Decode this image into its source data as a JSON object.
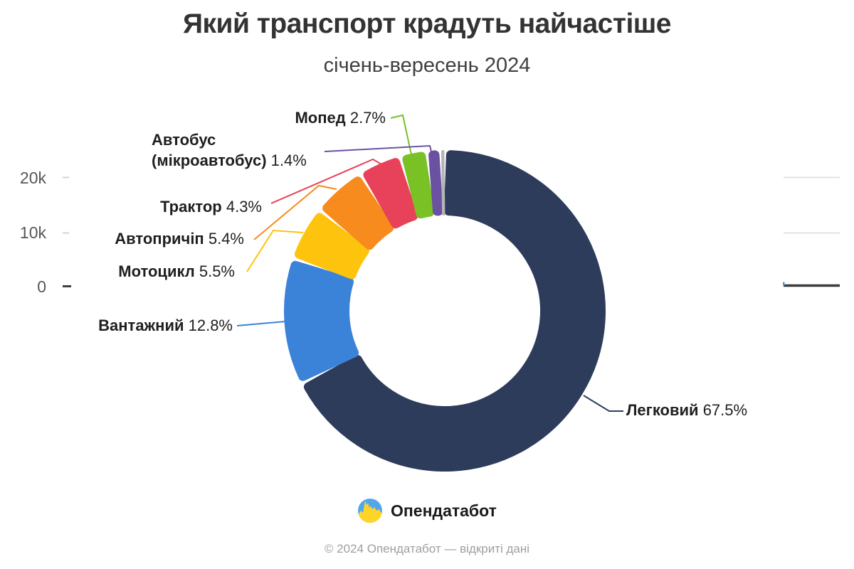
{
  "header": {
    "title": "Який транспорт крадуть найчастіше",
    "subtitle": "січень-вересень 2024"
  },
  "axis": {
    "yticks": [
      "20k",
      "10k",
      "0"
    ]
  },
  "chart_data": {
    "type": "pie",
    "subtype": "donut",
    "title": "Який транспорт крадуть найчастіше",
    "subtitle": "січень-вересень 2024",
    "unit": "%",
    "direction": "clockwise",
    "start_angle_deg": 0,
    "slices": [
      {
        "name": "Легковий",
        "pct": "67.5%",
        "value": 67.5,
        "color": "#2e3c5c"
      },
      {
        "name": "Вантажний",
        "pct": "12.8%",
        "value": 12.8,
        "color": "#3b82d9"
      },
      {
        "name": "Мотоцикл",
        "pct": "5.5%",
        "value": 5.5,
        "color": "#fdc30d"
      },
      {
        "name": "Автопричіп",
        "pct": "5.4%",
        "value": 5.4,
        "color": "#f78b1d"
      },
      {
        "name": "Трактор",
        "pct": "4.3%",
        "value": 4.3,
        "color": "#e8415a"
      },
      {
        "name": "Мопед",
        "pct": "2.7%",
        "value": 2.7,
        "color": "#79c125"
      },
      {
        "name": "Автобус",
        "name2": "(мікроавтобус)",
        "pct": "1.4%",
        "value": 1.4,
        "color": "#6b51a1"
      },
      {
        "name": "",
        "pct": "",
        "value": 0.4,
        "color": "#b5b5b5",
        "unlabeled": true
      }
    ],
    "axis_remnant_yticks": [
      "20k",
      "10k",
      "0"
    ],
    "legend_position": "none",
    "grid": "partial-right"
  },
  "colors": {
    "gridline_light": "#e3e3e3",
    "gridline_dark": "#3a3a3a",
    "tick_light": "#d4d4d4",
    "tick_dark": "#404040",
    "small_bar_blue": "#5b9bd5",
    "logo_blue": "#51a7ea",
    "logo_yellow": "#ffd429"
  },
  "footer": {
    "brand": "Опендатабот",
    "copyright": "© 2024 Опендатабот — відкриті дані"
  }
}
